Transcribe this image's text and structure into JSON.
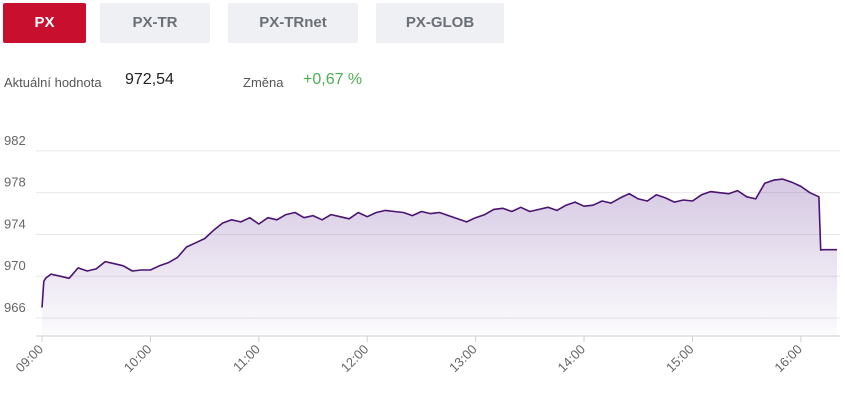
{
  "tabs": [
    {
      "label": "PX",
      "active": true
    },
    {
      "label": "PX-TR",
      "active": false
    },
    {
      "label": "PX-TRnet",
      "active": false
    },
    {
      "label": "PX-GLOB",
      "active": false
    }
  ],
  "summary": {
    "value_label": "Aktuální hodnota",
    "value": "972,54",
    "change_label": "Změna",
    "change": "+0,67 %"
  },
  "colors": {
    "accent": "#c8102e",
    "line": "#4a1470",
    "change_positive": "#4caf50"
  },
  "chart_data": {
    "type": "area",
    "title": "",
    "xlabel": "",
    "ylabel": "",
    "y_ticks": [
      "966",
      "970",
      "974",
      "978",
      "982"
    ],
    "x_ticks": [
      "09:00",
      "10:00",
      "11:00",
      "12:00",
      "13:00",
      "14:00",
      "15:00",
      "16:00"
    ],
    "ylim": [
      966,
      984
    ],
    "x": [
      "09:00",
      "09:01",
      "09:02",
      "09:05",
      "09:10",
      "09:15",
      "09:20",
      "09:25",
      "09:30",
      "09:35",
      "09:40",
      "09:45",
      "09:50",
      "09:55",
      "10:00",
      "10:05",
      "10:10",
      "10:15",
      "10:20",
      "10:25",
      "10:30",
      "10:35",
      "10:40",
      "10:45",
      "10:50",
      "10:55",
      "11:00",
      "11:05",
      "11:10",
      "11:15",
      "11:20",
      "11:25",
      "11:30",
      "11:35",
      "11:40",
      "11:45",
      "11:50",
      "11:55",
      "12:00",
      "12:05",
      "12:10",
      "12:15",
      "12:20",
      "12:25",
      "12:30",
      "12:35",
      "12:40",
      "12:45",
      "12:50",
      "12:55",
      "13:00",
      "13:05",
      "13:10",
      "13:15",
      "13:20",
      "13:25",
      "13:30",
      "13:35",
      "13:40",
      "13:45",
      "13:50",
      "13:55",
      "14:00",
      "14:05",
      "14:10",
      "14:15",
      "14:20",
      "14:25",
      "14:30",
      "14:35",
      "14:40",
      "14:45",
      "14:50",
      "14:55",
      "15:00",
      "15:05",
      "15:10",
      "15:15",
      "15:20",
      "15:25",
      "15:30",
      "15:35",
      "15:40",
      "15:45",
      "15:50",
      "15:55",
      "16:00",
      "16:05",
      "16:10",
      "16:11",
      "16:12",
      "16:20"
    ],
    "series": [
      {
        "values": [
          967.0,
          969.5,
          969.8,
          970.2,
          970.0,
          969.8,
          970.8,
          970.5,
          970.7,
          971.4,
          971.2,
          971.0,
          970.5,
          970.6,
          970.6,
          971.0,
          971.3,
          971.8,
          972.8,
          973.2,
          973.6,
          974.4,
          975.1,
          975.4,
          975.2,
          975.6,
          975.0,
          975.6,
          975.4,
          975.9,
          976.1,
          975.6,
          975.8,
          975.4,
          975.9,
          975.7,
          975.5,
          976.1,
          975.7,
          976.1,
          976.3,
          976.2,
          976.1,
          975.8,
          976.2,
          976.0,
          976.1,
          975.8,
          975.5,
          975.2,
          975.6,
          975.9,
          976.4,
          976.5,
          976.2,
          976.6,
          976.2,
          976.4,
          976.6,
          976.3,
          976.8,
          977.1,
          976.7,
          976.8,
          977.2,
          977.0,
          977.5,
          977.9,
          977.4,
          977.2,
          977.8,
          977.5,
          977.1,
          977.3,
          977.2,
          977.8,
          978.1,
          978.0,
          977.9,
          978.2,
          977.6,
          977.4,
          978.9,
          979.2,
          979.3,
          979.0,
          978.6,
          978.0,
          977.6,
          972.5,
          972.54,
          972.54
        ]
      }
    ]
  }
}
